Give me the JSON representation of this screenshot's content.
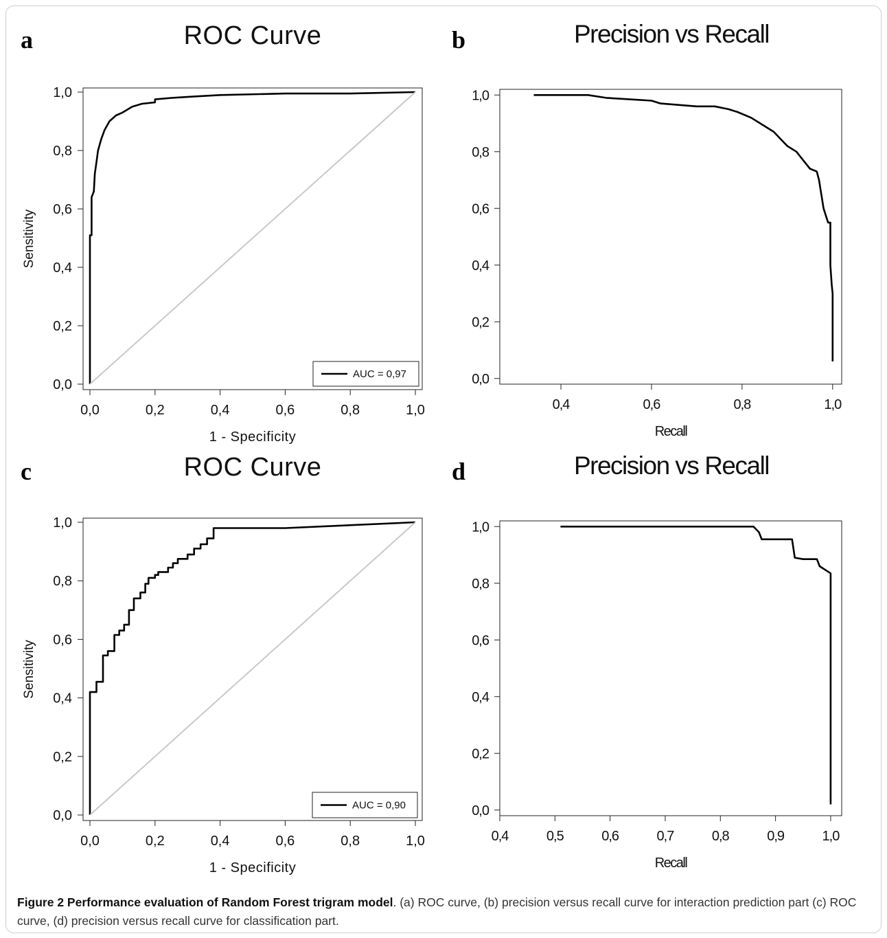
{
  "panels": [
    {
      "letter": "a",
      "chart_data": {
        "type": "line",
        "title": "ROC Curve",
        "xlabel": "1 - Specificity",
        "ylabel": "Sensitivity",
        "xlim": [
          0,
          1
        ],
        "ylim": [
          0,
          1
        ],
        "xticks": [
          "0,0",
          "0,2",
          "0,4",
          "0,6",
          "0,8",
          "1,0"
        ],
        "yticks": [
          "0,0",
          "0,2",
          "0,4",
          "0,6",
          "0,8",
          "1,0"
        ],
        "grid": false,
        "legend": {
          "position": "bottom-right",
          "entries": [
            "AUC = 0,97"
          ]
        },
        "series": [
          {
            "name": "AUC = 0,97",
            "color": "#000000",
            "points": [
              [
                0,
                0
              ],
              [
                0,
                0.51
              ],
              [
                0.005,
                0.51
              ],
              [
                0.005,
                0.64
              ],
              [
                0.012,
                0.66
              ],
              [
                0.015,
                0.72
              ],
              [
                0.02,
                0.76
              ],
              [
                0.025,
                0.8
              ],
              [
                0.035,
                0.84
              ],
              [
                0.045,
                0.87
              ],
              [
                0.06,
                0.9
              ],
              [
                0.08,
                0.92
              ],
              [
                0.1,
                0.93
              ],
              [
                0.13,
                0.95
              ],
              [
                0.16,
                0.96
              ],
              [
                0.2,
                0.965
              ],
              [
                0.2,
                0.975
              ],
              [
                0.25,
                0.98
              ],
              [
                0.32,
                0.985
              ],
              [
                0.4,
                0.99
              ],
              [
                0.6,
                0.995
              ],
              [
                0.8,
                0.995
              ],
              [
                1,
                1
              ]
            ]
          },
          {
            "name": "",
            "color": "#c8c8c8",
            "points": [
              [
                0,
                0
              ],
              [
                1,
                1
              ]
            ]
          }
        ]
      }
    },
    {
      "letter": "b",
      "chart_data": {
        "type": "line",
        "title": "Precision vs Recall",
        "xlabel": "Recall",
        "ylabel": "",
        "xlim": [
          0.265,
          1.02
        ],
        "ylim": [
          -0.02,
          1.02
        ],
        "xticks": [
          "0,4",
          "0,6",
          "0,8",
          "1,0"
        ],
        "xtickvals": [
          0.4,
          0.6,
          0.8,
          1.0
        ],
        "yticks": [
          "0,0",
          "0,2",
          "0,4",
          "0,6",
          "0,8",
          "1,0"
        ],
        "grid": false,
        "series": [
          {
            "name": "",
            "color": "#000000",
            "points": [
              [
                0.34,
                1.0
              ],
              [
                0.46,
                1.0
              ],
              [
                0.5,
                0.99
              ],
              [
                0.55,
                0.985
              ],
              [
                0.6,
                0.98
              ],
              [
                0.62,
                0.97
              ],
              [
                0.66,
                0.965
              ],
              [
                0.7,
                0.96
              ],
              [
                0.74,
                0.96
              ],
              [
                0.77,
                0.95
              ],
              [
                0.79,
                0.94
              ],
              [
                0.82,
                0.92
              ],
              [
                0.85,
                0.89
              ],
              [
                0.87,
                0.87
              ],
              [
                0.9,
                0.82
              ],
              [
                0.92,
                0.8
              ],
              [
                0.94,
                0.76
              ],
              [
                0.95,
                0.74
              ],
              [
                0.965,
                0.73
              ],
              [
                0.97,
                0.7
              ],
              [
                0.98,
                0.6
              ],
              [
                0.99,
                0.55
              ],
              [
                0.995,
                0.55
              ],
              [
                0.995,
                0.4
              ],
              [
                0.998,
                0.33
              ],
              [
                1.0,
                0.3
              ],
              [
                1.0,
                0.06
              ]
            ]
          }
        ]
      }
    },
    {
      "letter": "c",
      "chart_data": {
        "type": "line",
        "title": "ROC Curve",
        "xlabel": "1 - Specificity",
        "ylabel": "Sensitivity",
        "xlim": [
          0,
          1
        ],
        "ylim": [
          0,
          1
        ],
        "xticks": [
          "0,0",
          "0,2",
          "0,4",
          "0,6",
          "0,8",
          "1,0"
        ],
        "yticks": [
          "0,0",
          "0,2",
          "0,4",
          "0,6",
          "0,8",
          "1,0"
        ],
        "grid": false,
        "legend": {
          "position": "bottom-right",
          "entries": [
            "AUC = 0,90"
          ]
        },
        "series": [
          {
            "name": "AUC = 0,90",
            "color": "#000000",
            "points": [
              [
                0,
                0
              ],
              [
                0,
                0.42
              ],
              [
                0.02,
                0.42
              ],
              [
                0.02,
                0.455
              ],
              [
                0.04,
                0.455
              ],
              [
                0.04,
                0.545
              ],
              [
                0.055,
                0.545
              ],
              [
                0.055,
                0.56
              ],
              [
                0.075,
                0.56
              ],
              [
                0.075,
                0.615
              ],
              [
                0.09,
                0.615
              ],
              [
                0.09,
                0.63
              ],
              [
                0.105,
                0.63
              ],
              [
                0.105,
                0.65
              ],
              [
                0.12,
                0.65
              ],
              [
                0.12,
                0.7
              ],
              [
                0.135,
                0.7
              ],
              [
                0.135,
                0.74
              ],
              [
                0.155,
                0.74
              ],
              [
                0.155,
                0.76
              ],
              [
                0.17,
                0.76
              ],
              [
                0.17,
                0.79
              ],
              [
                0.18,
                0.79
              ],
              [
                0.18,
                0.81
              ],
              [
                0.2,
                0.81
              ],
              [
                0.2,
                0.82
              ],
              [
                0.21,
                0.82
              ],
              [
                0.21,
                0.83
              ],
              [
                0.24,
                0.83
              ],
              [
                0.24,
                0.845
              ],
              [
                0.255,
                0.845
              ],
              [
                0.255,
                0.86
              ],
              [
                0.27,
                0.86
              ],
              [
                0.27,
                0.875
              ],
              [
                0.3,
                0.875
              ],
              [
                0.3,
                0.89
              ],
              [
                0.32,
                0.89
              ],
              [
                0.32,
                0.91
              ],
              [
                0.34,
                0.91
              ],
              [
                0.34,
                0.925
              ],
              [
                0.36,
                0.925
              ],
              [
                0.36,
                0.945
              ],
              [
                0.38,
                0.945
              ],
              [
                0.38,
                0.98
              ],
              [
                0.6,
                0.98
              ],
              [
                1,
                1
              ]
            ]
          },
          {
            "name": "",
            "color": "#c8c8c8",
            "points": [
              [
                0,
                0
              ],
              [
                1,
                1
              ]
            ]
          }
        ]
      }
    },
    {
      "letter": "d",
      "chart_data": {
        "type": "line",
        "title": "Precision vs Recall",
        "xlabel": "Recall",
        "ylabel": "",
        "xlim": [
          0.4,
          1.02
        ],
        "ylim": [
          -0.02,
          1.02
        ],
        "xticks": [
          "0,4",
          "0,5",
          "0,6",
          "0,7",
          "0,8",
          "0,9",
          "1,0"
        ],
        "xtickvals": [
          0.4,
          0.5,
          0.6,
          0.7,
          0.8,
          0.9,
          1.0
        ],
        "yticks": [
          "0,0",
          "0,2",
          "0,4",
          "0,6",
          "0,8",
          "1,0"
        ],
        "grid": false,
        "series": [
          {
            "name": "",
            "color": "#000000",
            "points": [
              [
                0.51,
                1.0
              ],
              [
                0.84,
                1.0
              ],
              [
                0.86,
                1.0
              ],
              [
                0.87,
                0.98
              ],
              [
                0.875,
                0.955
              ],
              [
                0.9,
                0.955
              ],
              [
                0.93,
                0.955
              ],
              [
                0.935,
                0.89
              ],
              [
                0.95,
                0.885
              ],
              [
                0.975,
                0.885
              ],
              [
                0.98,
                0.86
              ],
              [
                1.0,
                0.835
              ],
              [
                1.0,
                0.02
              ]
            ]
          }
        ]
      }
    }
  ],
  "caption": {
    "bold": "Figure 2 Performance evaluation of Random Forest trigram model",
    "rest": ". (a) ROC curve, (b) precision versus recall curve for interaction prediction part (c) ROC curve, (d) precision versus recall curve for classification part."
  }
}
